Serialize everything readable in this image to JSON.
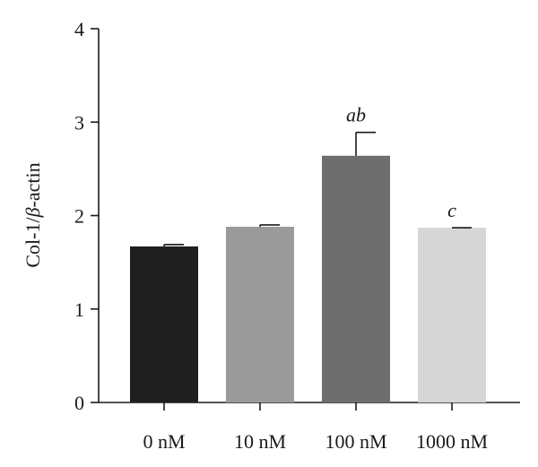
{
  "chart_data": {
    "type": "bar",
    "title": "",
    "xlabel": "",
    "ylabel": "Col-1/",
    "ylabel_symbol": "β",
    "ylabel_suffix": "-actin",
    "ylim": [
      0,
      4
    ],
    "yticks": [
      "0",
      "1",
      "2",
      "3",
      "4"
    ],
    "categories": [
      "0 nM",
      "10 nM",
      "100 nM",
      "1000 nM"
    ],
    "values": [
      1.67,
      1.88,
      2.64,
      1.87
    ],
    "errors": [
      0.02,
      0.02,
      0.25,
      0.0
    ],
    "annotations": [
      "",
      "",
      "ab",
      "c"
    ],
    "colors": [
      "#1f1f1f",
      "#9a9a9a",
      "#6e6e6e",
      "#d6d6d6"
    ],
    "grid": false,
    "legend": "none"
  }
}
